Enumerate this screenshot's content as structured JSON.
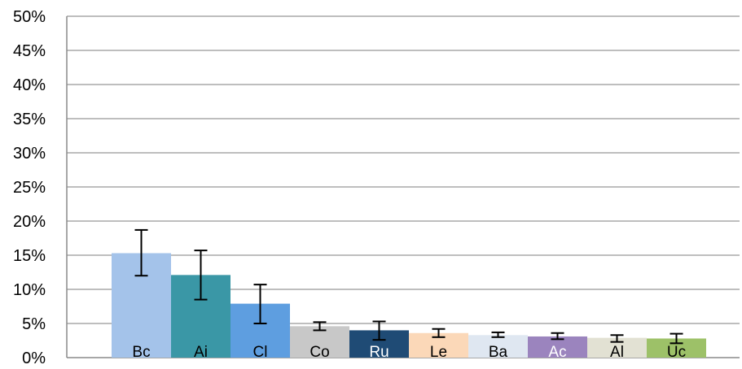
{
  "chart_data": {
    "type": "bar",
    "title": "",
    "xlabel": "",
    "ylabel": "",
    "ylim": [
      0,
      50
    ],
    "y_tick_labels": [
      "0%",
      "5%",
      "10%",
      "15%",
      "20%",
      "25%",
      "30%",
      "35%",
      "40%",
      "45%",
      "50%"
    ],
    "grid": "horizontal",
    "legend": "none",
    "categories": [
      "Bc",
      "Ai",
      "Cl",
      "Co",
      "Ru",
      "Le",
      "Ba",
      "Ac",
      "Al",
      "Uc"
    ],
    "values": [
      15.3,
      12.1,
      7.9,
      4.6,
      4.0,
      3.6,
      3.3,
      3.1,
      2.9,
      2.8
    ],
    "error_low": [
      12.0,
      8.5,
      5.0,
      4.0,
      2.6,
      3.0,
      3.0,
      2.7,
      2.3,
      2.1
    ],
    "error_high": [
      18.7,
      15.7,
      10.7,
      5.2,
      5.3,
      4.2,
      3.7,
      3.6,
      3.3,
      3.5
    ],
    "colors": [
      "#a4c3ea",
      "#3a97a6",
      "#5e9ee0",
      "#c8c8c8",
      "#1f4b75",
      "#fbd8b8",
      "#dfe7f1",
      "#9b84be",
      "#e2e1d3",
      "#9dc168"
    ],
    "label_colors": [
      "#000000",
      "#000000",
      "#000000",
      "#000000",
      "#ffffff",
      "#000000",
      "#000000",
      "#ffffff",
      "#000000",
      "#000000"
    ]
  }
}
